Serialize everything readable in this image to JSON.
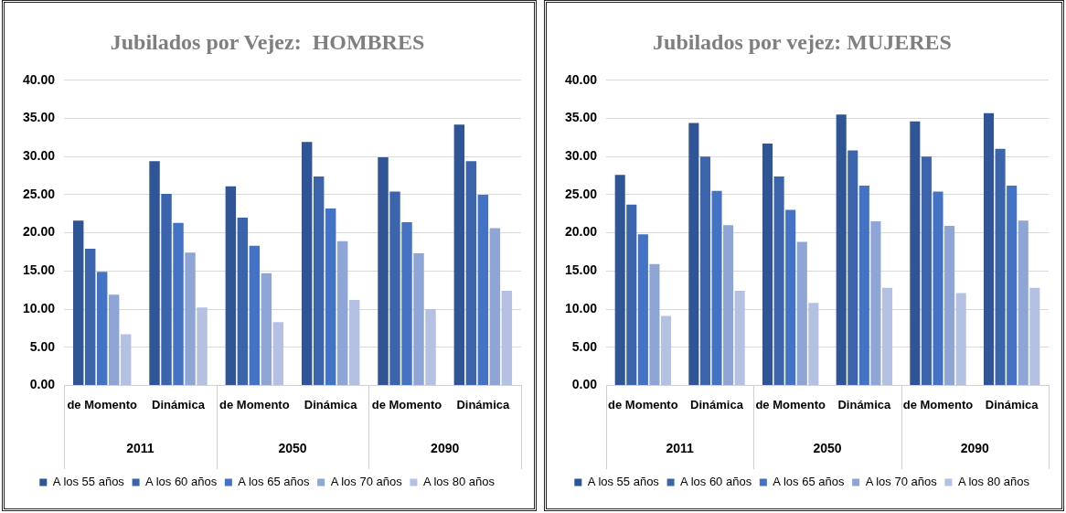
{
  "chart_data": [
    {
      "type": "bar",
      "title": "Jubilados por Vejez:  HOMBRES",
      "categories": [
        "de Momento",
        "Dinámica",
        "de Momento",
        "Dinámica",
        "de Momento",
        "Dinámica"
      ],
      "annotations": [
        "2011",
        "2050",
        "2090"
      ],
      "series": [
        {
          "name": "A los 55 años",
          "color": "#2f5597",
          "values": [
            21.6,
            29.4,
            26.1,
            31.9,
            29.9,
            34.2
          ]
        },
        {
          "name": "A los 60 años",
          "color": "#3b64ad",
          "values": [
            17.9,
            25.1,
            22.0,
            27.4,
            25.4,
            29.4
          ]
        },
        {
          "name": "A los 65 años",
          "color": "#4472c4",
          "values": [
            14.9,
            21.3,
            18.3,
            23.2,
            21.4,
            25.0
          ]
        },
        {
          "name": "A los 70 años",
          "color": "#8fa5d5",
          "values": [
            11.9,
            17.4,
            14.7,
            18.9,
            17.3,
            20.6
          ]
        },
        {
          "name": "A los 80 años",
          "color": "#b4c1e3",
          "values": [
            6.7,
            10.2,
            8.3,
            11.2,
            10.0,
            12.4
          ]
        }
      ],
      "ylim": [
        0,
        40
      ],
      "yticks": [
        {
          "value": 0,
          "label": "0.00"
        },
        {
          "value": 5,
          "label": "5.00"
        },
        {
          "value": 10,
          "label": "10.00"
        },
        {
          "value": 15,
          "label": "15.00"
        },
        {
          "value": 20,
          "label": "20.00"
        },
        {
          "value": 25,
          "label": "25.00"
        },
        {
          "value": 30,
          "label": "30.00"
        },
        {
          "value": 35,
          "label": "35.00"
        },
        {
          "value": 40,
          "label": "40.00"
        }
      ],
      "grid": "y",
      "legend": "bottom"
    },
    {
      "type": "bar",
      "title": "Jubilados por vejez: MUJERES",
      "categories": [
        "de Momento",
        "Dinámica",
        "de Momento",
        "Dinámica",
        "de Momento",
        "Dinámica"
      ],
      "annotations": [
        "2011",
        "2050",
        "2090"
      ],
      "series": [
        {
          "name": "A los 55 años",
          "color": "#2f5597",
          "values": [
            27.6,
            34.4,
            31.7,
            35.5,
            34.6,
            35.7
          ]
        },
        {
          "name": "A los 60 años",
          "color": "#3b64ad",
          "values": [
            23.7,
            30.0,
            27.4,
            30.8,
            30.0,
            31.0
          ]
        },
        {
          "name": "A los 65 años",
          "color": "#4472c4",
          "values": [
            19.8,
            25.5,
            23.0,
            26.2,
            25.4,
            26.2
          ]
        },
        {
          "name": "A los 70 años",
          "color": "#8fa5d5",
          "values": [
            15.9,
            21.0,
            18.8,
            21.5,
            20.9,
            21.6
          ]
        },
        {
          "name": "A los 80 años",
          "color": "#b4c1e3",
          "values": [
            9.1,
            12.4,
            10.8,
            12.8,
            12.1,
            12.8
          ]
        }
      ],
      "ylim": [
        0,
        40
      ],
      "yticks": [
        {
          "value": 0,
          "label": "0.00"
        },
        {
          "value": 5,
          "label": "5.00"
        },
        {
          "value": 10,
          "label": "10.00"
        },
        {
          "value": 15,
          "label": "15.00"
        },
        {
          "value": 20,
          "label": "20.00"
        },
        {
          "value": 25,
          "label": "25.00"
        },
        {
          "value": 30,
          "label": "30.00"
        },
        {
          "value": 35,
          "label": "35.00"
        },
        {
          "value": 40,
          "label": "40.00"
        }
      ],
      "grid": "y",
      "legend": "bottom"
    }
  ]
}
